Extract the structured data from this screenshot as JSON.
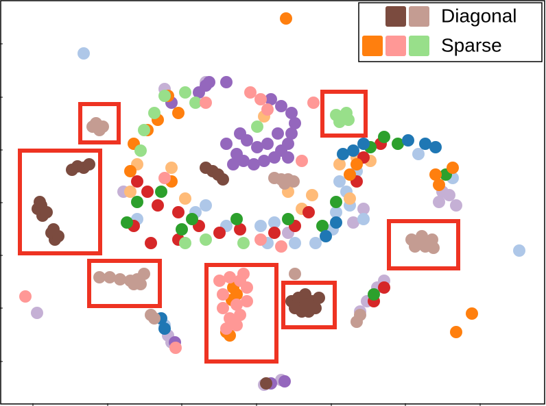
{
  "chart_data": {
    "type": "scatter",
    "xlim": [
      0,
      796
    ],
    "ylim": [
      593,
      0
    ],
    "xticks": [
      48,
      157,
      265,
      374,
      483,
      591,
      700
    ],
    "yticks": [
      64,
      142,
      219,
      296,
      373,
      450,
      528
    ],
    "legend": [
      {
        "label": "Diagonal",
        "colors": [
          "#7b4b3f",
          "#c49c92"
        ]
      },
      {
        "label": "Sparse",
        "colors": [
          "#ff7f0e",
          "#ff9896",
          "#98df8a"
        ]
      }
    ],
    "series": [
      {
        "color": "#c5b0d5",
        "x": [
          54,
          655,
          665,
          640,
          645,
          530,
          515,
          560,
          550,
          535,
          525,
          245,
          250,
          385,
          410,
          300,
          240,
          180,
          420
        ],
        "y": [
          457,
          285,
          300,
          295,
          280,
          305,
          325,
          410,
          420,
          440,
          455,
          490,
          500,
          562,
          555,
          120,
          130,
          280,
          340
        ]
      },
      {
        "color": "#aec7e8",
        "x": [
          122,
          757,
          495,
          505,
          510,
          490,
          530,
          520,
          485,
          460,
          400,
          380,
          330,
          285,
          300,
          200,
          610,
          660,
          240,
          390,
          430
        ],
        "y": [
          78,
          366,
          265,
          280,
          300,
          310,
          320,
          250,
          335,
          355,
          325,
          330,
          330,
          310,
          300,
          320,
          225,
          260,
          475,
          355,
          355
        ]
      },
      {
        "color": "#ffbb78",
        "x": [
          520,
          540,
          495,
          510,
          200,
          190,
          270,
          440,
          455,
          250,
          385,
          420
        ],
        "y": [
          230,
          235,
          240,
          290,
          240,
          280,
          290,
          305,
          285,
          245,
          170,
          280
        ]
      },
      {
        "color": "#d62728",
        "x": [
          200,
          215,
          230,
          260,
          290,
          320,
          350,
          400,
          430,
          450,
          520,
          555,
          195,
          220,
          530,
          545,
          560,
          260
        ],
        "y": [
          265,
          280,
          300,
          310,
          330,
          340,
          335,
          340,
          330,
          310,
          265,
          210,
          330,
          355,
          230,
          440,
          420,
          350
        ]
      },
      {
        "color": "#2ca02c",
        "x": [
          200,
          235,
          280,
          345,
          420,
          470,
          490,
          540,
          580,
          650,
          560,
          185,
          265,
          545
        ],
        "y": [
          295,
          280,
          320,
          320,
          320,
          330,
          295,
          215,
          210,
          255,
          200,
          325,
          335,
          430
        ]
      },
      {
        "color": "#1f77b4",
        "x": [
          500,
          515,
          530,
          595,
          620,
          635,
          490,
          475,
          235,
          240
        ],
        "y": [
          225,
          220,
          210,
          205,
          210,
          215,
          325,
          345,
          465,
          480
        ]
      },
      {
        "color": "#9467bd",
        "x": [
          330,
          345,
          355,
          370,
          385,
          400,
          410,
          420,
          425,
          430,
          425,
          410,
          395,
          350,
          360,
          375,
          390,
          405,
          340,
          330,
          305,
          290,
          250,
          300,
          420,
          395,
          415,
          255
        ],
        "y": [
          210,
          225,
          235,
          240,
          235,
          230,
          220,
          210,
          195,
          180,
          165,
          155,
          145,
          195,
          205,
          215,
          210,
          195,
          240,
          120,
          120,
          135,
          150,
          125,
          230,
          560,
          557,
          500
        ]
      },
      {
        "color": "#ff7f0e",
        "x": [
          417,
          665,
          688,
          340,
          345,
          338,
          335,
          330,
          215,
          245,
          260,
          230,
          190,
          195,
          250,
          640,
          635,
          660,
          510,
          520
        ],
        "y": [
          27,
          485,
          458,
          420,
          430,
          438,
          490,
          485,
          190,
          140,
          165,
          175,
          250,
          210,
          265,
          270,
          255,
          245,
          255,
          240
        ]
      },
      {
        "color": "#98df8a",
        "x": [
          490,
          500,
          508,
          495,
          505,
          240,
          270,
          285,
          225,
          300,
          270,
          205,
          210,
          375,
          355
        ],
        "y": [
          168,
          172,
          175,
          178,
          165,
          140,
          135,
          150,
          165,
          350,
          355,
          220,
          190,
          185,
          355
        ]
      },
      {
        "color": "#ff9896",
        "x": [
          37,
          457,
          320,
          335,
          350,
          360,
          325,
          345,
          325,
          335,
          350,
          345,
          330,
          360,
          355,
          365,
          380,
          390,
          300,
          410,
          380,
          240,
          440,
          256
        ],
        "y": [
          433,
          150,
          410,
          405,
          410,
          420,
          430,
          445,
          450,
          465,
          460,
          475,
          480,
          440,
          400,
          135,
          145,
          160,
          150,
          360,
          350,
          260,
          235,
          508
        ]
      },
      {
        "color": "#c49c92",
        "x": [
          140,
          150,
          145,
          135,
          145,
          160,
          175,
          190,
          200,
          210,
          205,
          195,
          600,
          615,
          630,
          620,
          605,
          632,
          612,
          400,
          410,
          420,
          428,
          415,
          220,
          225,
          430,
          520,
          525
        ],
        "y": [
          180,
          185,
          190,
          185,
          405,
          405,
          408,
          410,
          408,
          400,
          415,
          415,
          350,
          345,
          350,
          360,
          360,
          362,
          355,
          260,
          262,
          262,
          265,
          268,
          460,
          465,
          400,
          470,
          460
        ]
      },
      {
        "color": "#7b4b3f",
        "x": [
          105,
          113,
          122,
          130,
          55,
          60,
          62,
          68,
          58,
          75,
          80,
          85,
          78,
          425,
          435,
          445,
          455,
          460,
          450,
          440,
          430,
          445,
          465,
          300,
          310,
          318,
          325,
          388
        ],
        "y": [
          248,
          243,
          245,
          240,
          305,
          300,
          315,
          310,
          295,
          340,
          350,
          345,
          335,
          440,
          435,
          430,
          440,
          450,
          455,
          455,
          450,
          445,
          435,
          245,
          250,
          255,
          262,
          560
        ]
      }
    ]
  }
}
